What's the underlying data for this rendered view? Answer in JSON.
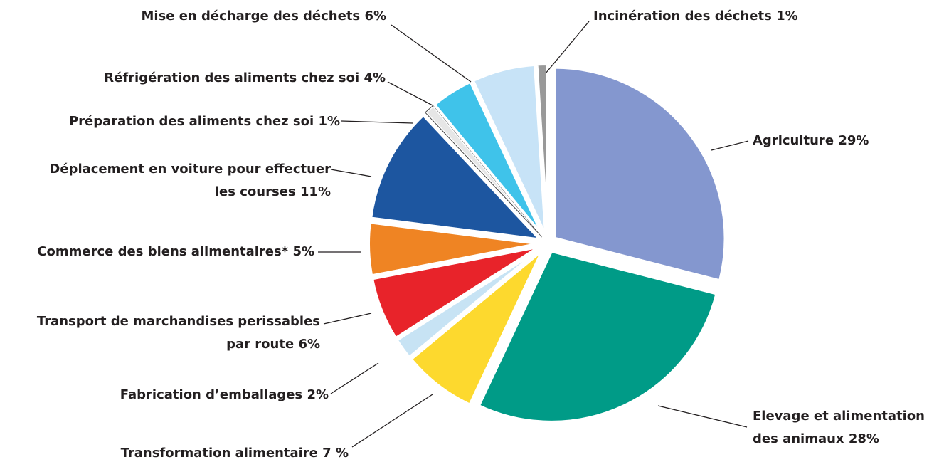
{
  "chart_data": {
    "type": "pie",
    "categories": [
      "Agriculture",
      "Elevage et alimentation\ndes animaux",
      "Transformation alimentaire",
      "Fabrication d’emballages",
      "Transport de marchandises perissables\npar route",
      "Commerce des biens alimentaires*",
      "Déplacement en voiture pour effectuer\nles courses",
      "Préparation des aliments chez soi",
      "Réfrigération des aliments chez soi",
      "Mise en décharge des déchets",
      "Incinération des déchets"
    ],
    "values": [
      29,
      28,
      7,
      2,
      6,
      5,
      11,
      1,
      4,
      6,
      1
    ],
    "value_labels": [
      "29%",
      "28%",
      "7 %",
      "2%",
      "6%",
      "5%",
      "11%",
      "1%",
      "4%",
      "6%",
      "1%"
    ],
    "colors": [
      "#8497cf",
      "#009b87",
      "#fdd92e",
      "#c7e3f4",
      "#e8232a",
      "#ef8423",
      "#1d56a0",
      "#e6e6e6",
      "#3fc3ea",
      "#c7e3f7",
      "#999999"
    ]
  }
}
